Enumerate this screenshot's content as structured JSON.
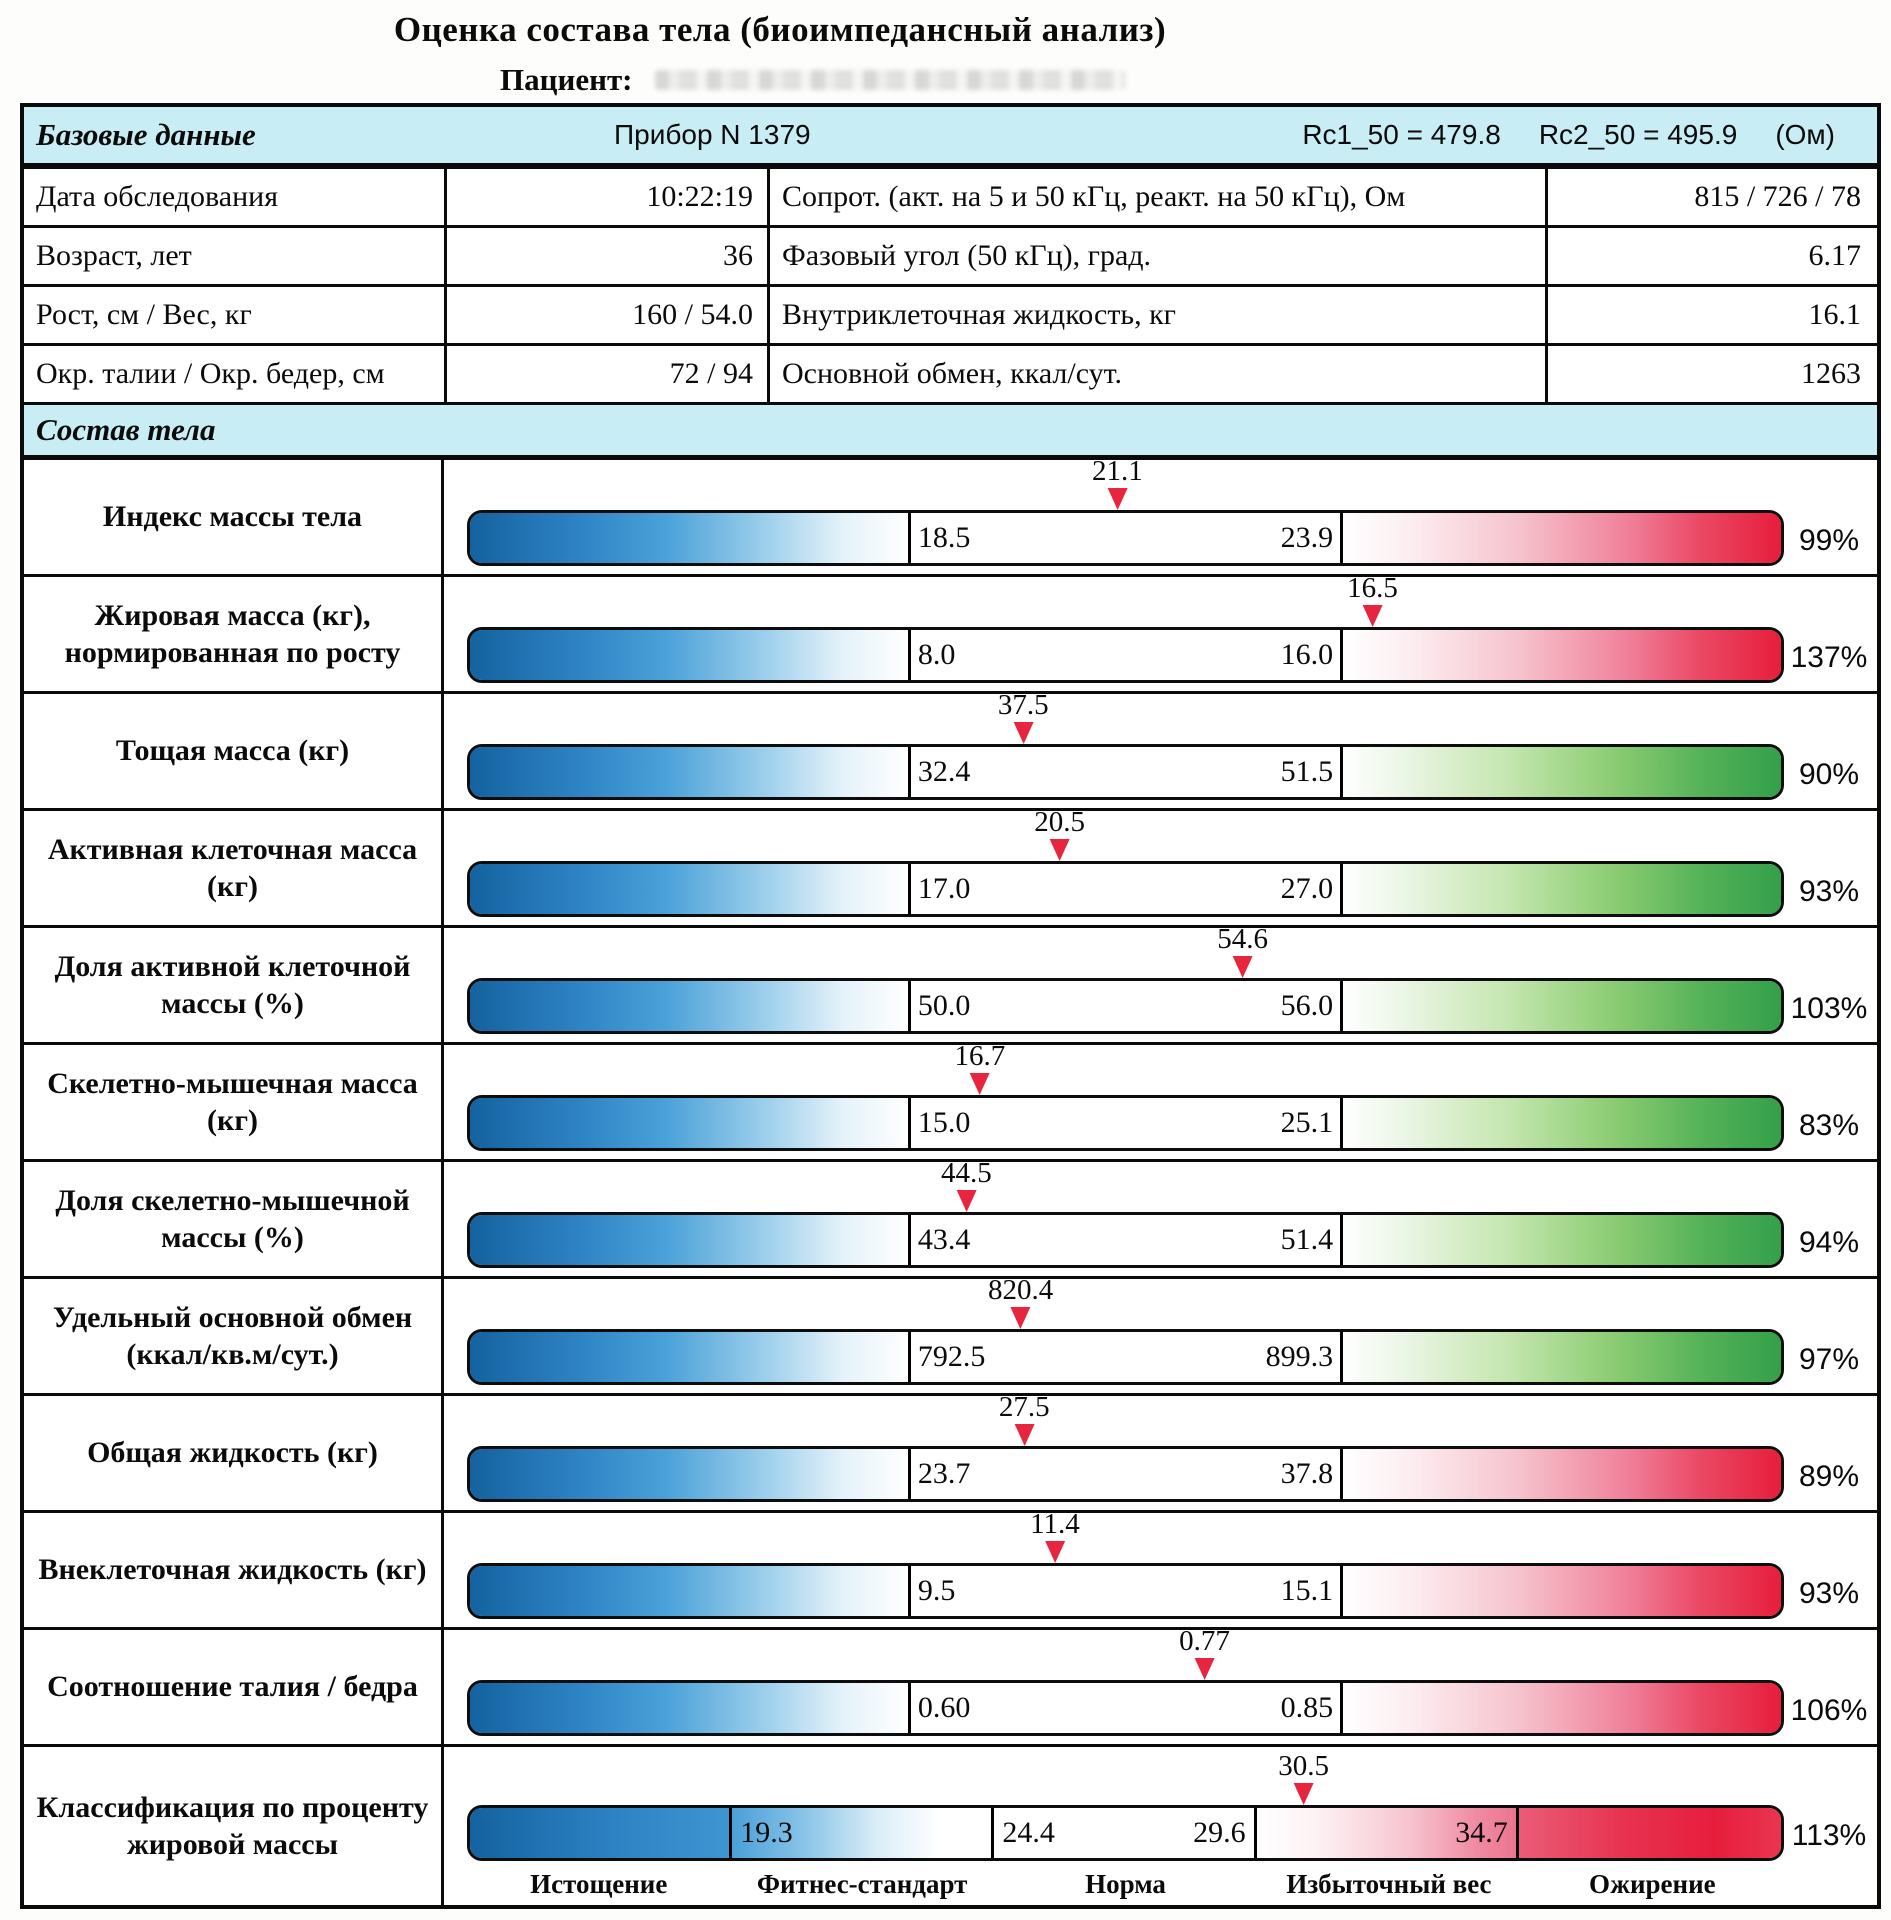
{
  "title": "Оценка состава тела (биоимпедансный анализ)",
  "patient": {
    "label": "Пациент:"
  },
  "colors": {
    "band_blue": "#c9edf5",
    "marker_red": "#e7253e",
    "bar_blue_start": "#14629f",
    "bar_red_end": "#e61e3c",
    "bar_green_end": "#33a04a"
  },
  "header": {
    "section_title": "Базовые данные",
    "device": "Прибор N 1379",
    "rc1": "Rc1_50 = 479.8",
    "rc2": "Rc2_50 = 495.9",
    "rc_unit": "(Ом)"
  },
  "basic_rows": [
    {
      "label": "Дата обследования",
      "value": "10:22:19",
      "label2": "Сопрот. (акт. на 5 и 50 кГц, реакт. на 50 кГц), Ом",
      "value2": "815 / 726 / 78"
    },
    {
      "label": "Возраст, лет",
      "value": "36",
      "label2": "Фазовый угол (50 кГц), град.",
      "value2": "6.17"
    },
    {
      "label": "Рост, см / Вес, кг",
      "value": "160 / 54.0",
      "label2": "Внутриклеточная жидкость, кг",
      "value2": "16.1"
    },
    {
      "label": "Окр. талии / Окр. бедер, см",
      "value": "72 / 94",
      "label2": "Основной обмен, ккал/сут.",
      "value2": "1263"
    }
  ],
  "composition": {
    "section_title": "Состав тела",
    "rows": [
      {
        "label": "Индекс массы тела",
        "marker": "21.1",
        "min": "18.5",
        "max": "23.9",
        "percent": "99%",
        "right_color": "red"
      },
      {
        "label": "Жировая масса (кг), нормированная по росту",
        "marker": "16.5",
        "min": "8.0",
        "max": "16.0",
        "percent": "137%",
        "right_color": "red"
      },
      {
        "label": "Тощая масса (кг)",
        "marker": "37.5",
        "min": "32.4",
        "max": "51.5",
        "percent": "90%",
        "right_color": "green"
      },
      {
        "label": "Активная клеточная масса (кг)",
        "marker": "20.5",
        "min": "17.0",
        "max": "27.0",
        "percent": "93%",
        "right_color": "green"
      },
      {
        "label": "Доля активной клеточной массы (%)",
        "marker": "54.6",
        "min": "50.0",
        "max": "56.0",
        "percent": "103%",
        "right_color": "green"
      },
      {
        "label": "Скелетно-мышечная масса (кг)",
        "marker": "16.7",
        "min": "15.0",
        "max": "25.1",
        "percent": "83%",
        "right_color": "green"
      },
      {
        "label": "Доля скелетно-мышечной массы (%)",
        "marker": "44.5",
        "min": "43.4",
        "max": "51.4",
        "percent": "94%",
        "right_color": "green"
      },
      {
        "label": "Удельный основной обмен (ккал/кв.м/сут.)",
        "marker": "820.4",
        "min": "792.5",
        "max": "899.3",
        "percent": "97%",
        "right_color": "green"
      },
      {
        "label": "Общая жидкость (кг)",
        "marker": "27.5",
        "min": "23.7",
        "max": "37.8",
        "percent": "89%",
        "right_color": "red"
      },
      {
        "label": "Внеклеточная жидкость (кг)",
        "marker": "11.4",
        "min": "9.5",
        "max": "15.1",
        "percent": "93%",
        "right_color": "red"
      },
      {
        "label": "Соотношение талия / бедра",
        "marker": "0.77",
        "min": "0.60",
        "max": "0.85",
        "percent": "106%",
        "right_color": "red"
      }
    ],
    "classification": {
      "label": "Классификация по проценту жировой массы",
      "marker": "30.5",
      "thresholds": [
        "19.3",
        "24.4",
        "29.6",
        "34.7"
      ],
      "percent": "113%",
      "zones": [
        "Истощение",
        "Фитнес-стандарт",
        "Норма",
        "Избыточный вес",
        "Ожирение"
      ]
    }
  }
}
